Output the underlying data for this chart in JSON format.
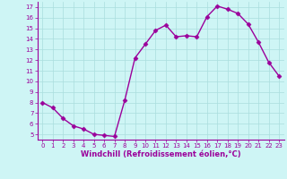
{
  "x": [
    0,
    1,
    2,
    3,
    4,
    5,
    6,
    7,
    8,
    9,
    10,
    11,
    12,
    13,
    14,
    15,
    16,
    17,
    18,
    19,
    20,
    21,
    22,
    23
  ],
  "y": [
    8.0,
    7.5,
    6.5,
    5.8,
    5.5,
    5.0,
    4.9,
    4.8,
    8.2,
    12.2,
    13.5,
    14.8,
    15.3,
    14.2,
    14.3,
    14.2,
    16.1,
    17.1,
    16.8,
    16.4,
    15.4,
    13.7,
    11.8,
    10.5
  ],
  "line_color": "#9b009b",
  "marker": "D",
  "marker_size": 2.5,
  "bg_color": "#cef5f5",
  "grid_color": "#aadddd",
  "xlabel": "Windchill (Refroidissement éolien,°C)",
  "xlim": [
    -0.5,
    23.5
  ],
  "ylim": [
    4.5,
    17.5
  ],
  "yticks": [
    5,
    6,
    7,
    8,
    9,
    10,
    11,
    12,
    13,
    14,
    15,
    16,
    17
  ],
  "xticks": [
    0,
    1,
    2,
    3,
    4,
    5,
    6,
    7,
    8,
    9,
    10,
    11,
    12,
    13,
    14,
    15,
    16,
    17,
    18,
    19,
    20,
    21,
    22,
    23
  ],
  "xlabel_fontsize": 6,
  "tick_fontsize": 5,
  "line_width": 1.0
}
